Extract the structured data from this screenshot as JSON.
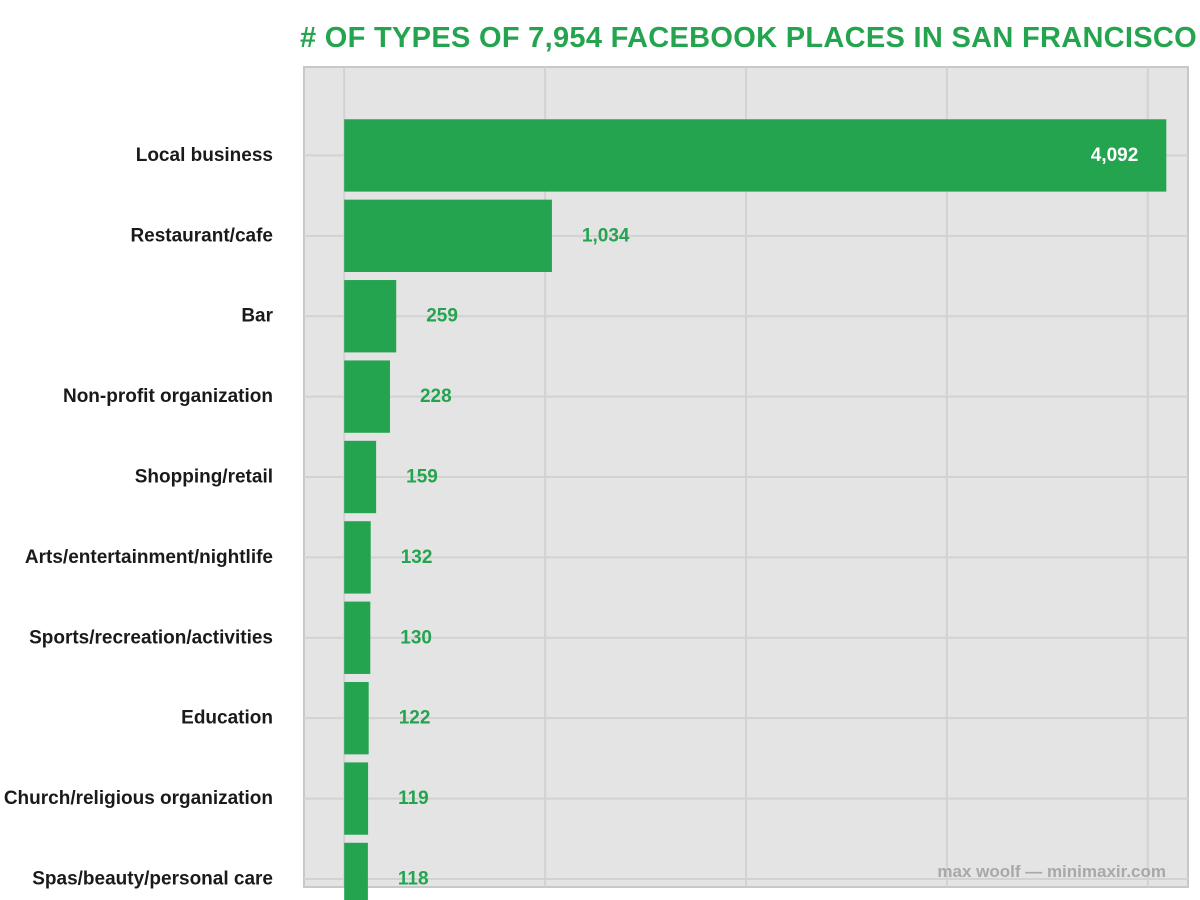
{
  "chart_data": {
    "type": "bar",
    "orientation": "horizontal",
    "title": "# OF TYPES OF 7,954 FACEBOOK PLACES IN SAN FRANCISCO",
    "categories": [
      "Local business",
      "Restaurant/cafe",
      "Bar",
      "Non-profit organization",
      "Shopping/retail",
      "Arts/entertainment/nightlife",
      "Sports/recreation/activities",
      "Education",
      "Church/religious organization",
      "Spas/beauty/personal care"
    ],
    "values": [
      4092,
      1034,
      259,
      228,
      159,
      132,
      130,
      122,
      119,
      118
    ],
    "value_labels": [
      "4,092",
      "1,034",
      "259",
      "228",
      "159",
      "132",
      "130",
      "122",
      "119",
      "118"
    ],
    "xlim": [
      -200,
      4200
    ],
    "xticks": [
      0,
      1000,
      2000,
      3000,
      4000
    ],
    "grid": true,
    "colors": {
      "bar": "#25a450",
      "panel_background": "#e4e4e4",
      "grid": "#d2d2d2",
      "title": "#25a450",
      "inner_label": "#ffffff",
      "outer_label": "#25a450"
    }
  },
  "credit": "max woolf — minimaxir.com"
}
